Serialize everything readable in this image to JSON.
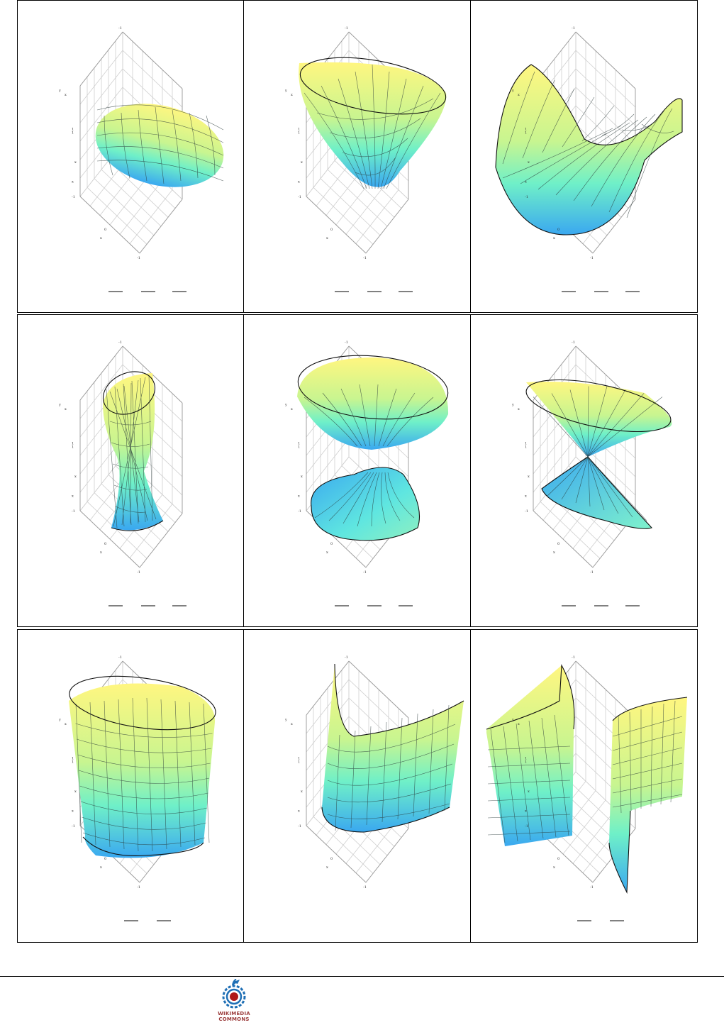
{
  "figure": {
    "panels": [
      {
        "surface": "ellipsoid",
        "axis_ticks": {
          "x": [
            "0",
            "-1"
          ],
          "y": [
            "y",
            "x",
            "-1"
          ],
          "z": [
            "1",
            "0",
            "x",
            "-1"
          ]
        },
        "x_label": "x",
        "formula_fractions": 3
      },
      {
        "surface": "elliptic-paraboloid",
        "axis_ticks": {
          "x": [
            "0",
            "-1"
          ],
          "y": [
            "y",
            "x",
            "-1"
          ],
          "z": [
            "1",
            "0",
            "x",
            "-1"
          ]
        },
        "x_label": "x",
        "formula_fractions": 3
      },
      {
        "surface": "hyperbolic-paraboloid",
        "axis_ticks": {
          "x": [
            "0",
            "-1"
          ],
          "y": [
            "y",
            "x",
            "-1"
          ],
          "z": [
            "1",
            "0",
            "x",
            "-1"
          ]
        },
        "x_label": "x",
        "formula_fractions": 3
      },
      {
        "surface": "hyperboloid-of-one-sheet",
        "axis_ticks": {
          "x": [
            "0",
            "-1"
          ],
          "y": [
            "y",
            "x",
            "-1"
          ],
          "z": [
            "1",
            "0",
            "x",
            "-1"
          ]
        },
        "x_label": "x",
        "formula_fractions": 3
      },
      {
        "surface": "hyperboloid-of-two-sheets",
        "axis_ticks": {
          "x": [
            "0",
            "-1"
          ],
          "y": [
            "y",
            "x",
            "-1"
          ],
          "z": [
            "1",
            "0",
            "x",
            "-1"
          ]
        },
        "x_label": "x",
        "formula_fractions": 3
      },
      {
        "surface": "elliptic-cone",
        "axis_ticks": {
          "x": [
            "0",
            "-1"
          ],
          "y": [
            "y",
            "x",
            "-1"
          ],
          "z": [
            "1",
            "0",
            "x",
            "-1"
          ]
        },
        "x_label": "x",
        "formula_fractions": 3
      },
      {
        "surface": "elliptic-cylinder",
        "axis_ticks": {
          "x": [
            "0",
            "-1"
          ],
          "y": [
            "y",
            "x",
            "-1"
          ],
          "z": [
            "1",
            "0",
            "x",
            "-1"
          ]
        },
        "x_label": "x",
        "formula_fractions": 2
      },
      {
        "surface": "parabolic-cylinder",
        "axis_ticks": {
          "x": [
            "0",
            "-1"
          ],
          "y": [
            "y",
            "x",
            "-1"
          ],
          "z": [
            "1",
            "0",
            "x",
            "-1"
          ]
        },
        "x_label": "x",
        "formula_fractions": 0
      },
      {
        "surface": "hyperbolic-cylinder",
        "axis_ticks": {
          "x": [
            "0",
            "-1"
          ],
          "y": [
            "y",
            "x",
            "-1"
          ],
          "z": [
            "1",
            "0",
            "x",
            "-1"
          ]
        },
        "x_label": "x",
        "formula_fractions": 2
      }
    ]
  },
  "footer": {
    "logo_line1": "WIKIMEDIA",
    "logo_line2": "COMMONS",
    "logo_icon": "wikimedia-commons-logo-icon"
  },
  "colors": {
    "surface_high": "#fff680",
    "surface_mid": "#6ff0c8",
    "surface_low": "#3aa8f0",
    "grid": "#cfcfcf",
    "edge": "#111111"
  }
}
